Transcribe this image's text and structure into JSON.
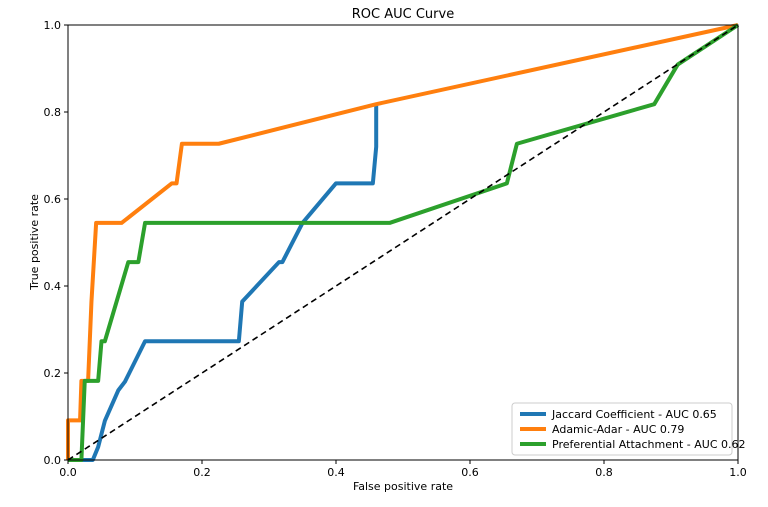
{
  "chart_data": {
    "type": "line",
    "title": "ROC AUC Curve",
    "xlabel": "False positive rate",
    "ylabel": "True positive rate",
    "xlim": [
      0.0,
      1.0
    ],
    "ylim": [
      0.0,
      1.0
    ],
    "x_ticks": [
      0.0,
      0.2,
      0.4,
      0.6,
      0.8,
      1.0
    ],
    "y_ticks": [
      0.0,
      0.2,
      0.4,
      0.6,
      0.8,
      1.0
    ],
    "x_tick_labels": [
      "0.0",
      "0.2",
      "0.4",
      "0.6",
      "0.8",
      "1.0"
    ],
    "y_tick_labels": [
      "0.0",
      "0.2",
      "0.4",
      "0.6",
      "0.8",
      "1.0"
    ],
    "grid": false,
    "legend_position": "bottom-right",
    "series": [
      {
        "name": "Jaccard Coefficient - AUC 0.65",
        "color": "#1f77b4",
        "x": [
          0.0,
          0.037,
          0.045,
          0.055,
          0.075,
          0.085,
          0.115,
          0.17,
          0.255,
          0.26,
          0.315,
          0.32,
          0.35,
          0.4,
          0.455,
          0.46,
          0.46
        ],
        "y": [
          0.0,
          0.0,
          0.03,
          0.09,
          0.16,
          0.18,
          0.273,
          0.273,
          0.273,
          0.364,
          0.455,
          0.455,
          0.545,
          0.636,
          0.636,
          0.72,
          0.818
        ]
      },
      {
        "name": "Adamic-Adar - AUC 0.79",
        "color": "#ff7f0e",
        "x": [
          0.0,
          0.0,
          0.018,
          0.02,
          0.03,
          0.035,
          0.042,
          0.08,
          0.155,
          0.162,
          0.17,
          0.225,
          0.46,
          1.0
        ],
        "y": [
          0.0,
          0.091,
          0.091,
          0.182,
          0.182,
          0.364,
          0.545,
          0.545,
          0.636,
          0.636,
          0.727,
          0.727,
          0.818,
          1.0
        ]
      },
      {
        "name": "Preferential Attachment - AUC 0.62",
        "color": "#2ca02c",
        "x": [
          0.0,
          0.02,
          0.025,
          0.045,
          0.05,
          0.055,
          0.09,
          0.105,
          0.115,
          0.48,
          0.655,
          0.67,
          0.875,
          0.91,
          1.0
        ],
        "y": [
          0.0,
          0.0,
          0.182,
          0.182,
          0.273,
          0.273,
          0.455,
          0.455,
          0.545,
          0.545,
          0.636,
          0.727,
          0.818,
          0.909,
          1.0
        ]
      }
    ],
    "reference_line": {
      "x": [
        0.0,
        1.0
      ],
      "y": [
        0.0,
        1.0
      ],
      "color": "#000000",
      "style": "dashed"
    }
  }
}
